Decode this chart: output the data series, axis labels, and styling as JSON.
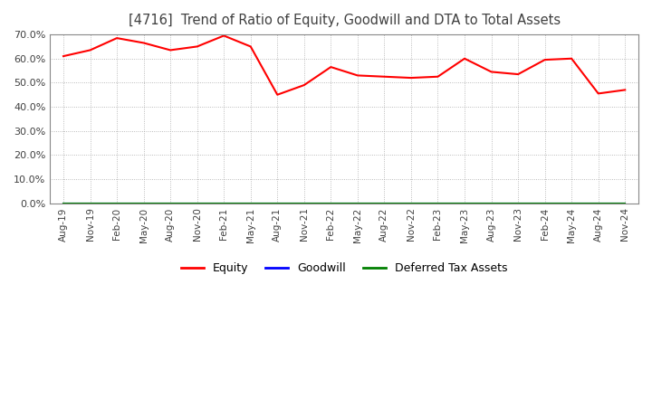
{
  "title": "[4716]  Trend of Ratio of Equity, Goodwill and DTA to Total Assets",
  "x_labels": [
    "Aug-19",
    "Nov-19",
    "Feb-20",
    "May-20",
    "Aug-20",
    "Nov-20",
    "Feb-21",
    "May-21",
    "Aug-21",
    "Nov-21",
    "Feb-22",
    "May-22",
    "Aug-22",
    "Nov-22",
    "Feb-23",
    "May-23",
    "Aug-23",
    "Nov-23",
    "Feb-24",
    "May-24",
    "Aug-24",
    "Nov-24"
  ],
  "equity": [
    0.61,
    0.635,
    0.685,
    0.665,
    0.635,
    0.65,
    0.695,
    0.65,
    0.45,
    0.49,
    0.565,
    0.53,
    0.525,
    0.52,
    0.525,
    0.6,
    0.545,
    0.535,
    0.595,
    0.6,
    0.455,
    0.47
  ],
  "goodwill": [
    0,
    0,
    0,
    0,
    0,
    0,
    0,
    0,
    0,
    0,
    0,
    0,
    0,
    0,
    0,
    0,
    0,
    0,
    0,
    0,
    0,
    0
  ],
  "dta": [
    0,
    0,
    0,
    0,
    0,
    0,
    0,
    0,
    0,
    0,
    0,
    0,
    0,
    0,
    0,
    0,
    0,
    0,
    0,
    0,
    0,
    0
  ],
  "equity_color": "#ff0000",
  "goodwill_color": "#0000ff",
  "dta_color": "#008000",
  "ylim": [
    0.0,
    0.7
  ],
  "yticks": [
    0.0,
    0.1,
    0.2,
    0.3,
    0.4,
    0.5,
    0.6,
    0.7
  ],
  "grid_color": "#aaaaaa",
  "background_color": "#ffffff",
  "title_color": "#404040",
  "legend_labels": [
    "Equity",
    "Goodwill",
    "Deferred Tax Assets"
  ]
}
